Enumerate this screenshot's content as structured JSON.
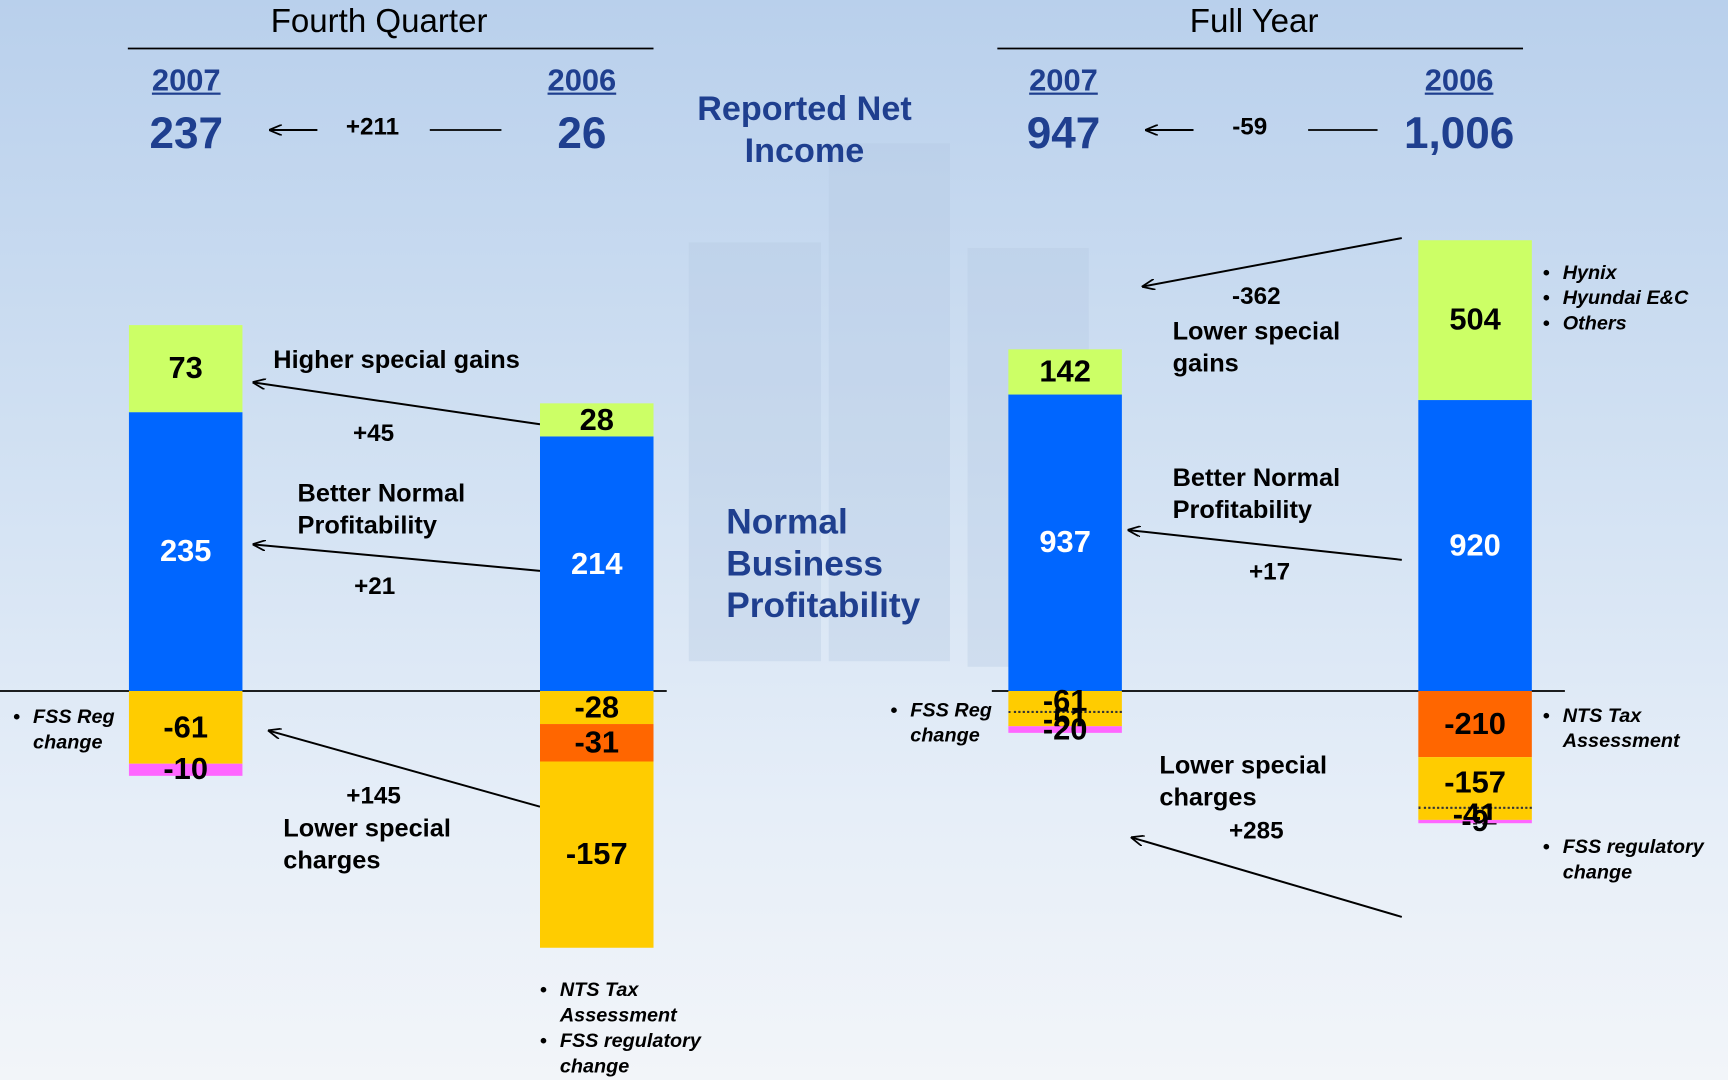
{
  "center_labels": [
    "Reported Net Income",
    "Normal Business Profitability"
  ],
  "chart_data": [
    {
      "type": "bar",
      "title": "Fourth Quarter",
      "change": "+211",
      "net_income": [
        {
          "year": "2007",
          "value": 237
        },
        {
          "year": "2006",
          "value": 26
        }
      ],
      "bars": [
        {
          "segments": [
            {
              "value": 235,
              "color": "#0066ff"
            },
            {
              "value": 73,
              "color": "#ccff66"
            },
            {
              "value": -61,
              "color": "#ffcc00"
            },
            {
              "value": -10,
              "color": "#ff66ff"
            }
          ]
        },
        {
          "segments": [
            {
              "value": 214,
              "color": "#0066ff"
            },
            {
              "value": 28,
              "color": "#ccff66"
            },
            {
              "value": -28,
              "color": "#ffcc00"
            },
            {
              "value": -31,
              "color": "#ff6600"
            },
            {
              "value": -157,
              "color": "#ffcc00"
            }
          ]
        }
      ],
      "annotations": [
        {
          "change": "+45",
          "label": "Higher special gains"
        },
        {
          "change": "+21",
          "label": "Better Normal Profitability"
        },
        {
          "change": "+145",
          "label": "Lower special charges"
        }
      ],
      "notes": [
        {
          "items": [
            "FSS Reg change"
          ]
        },
        {
          "items": [
            "NTS Tax Assessment",
            "FSS regulatory change"
          ]
        }
      ]
    },
    {
      "type": "bar",
      "title": "Full Year",
      "change": "-59",
      "net_income": [
        {
          "year": "2007",
          "value": 947
        },
        {
          "year": "2006",
          "value": 1006,
          "label": "1,006"
        }
      ],
      "bars": [
        {
          "segments": [
            {
              "value": 937,
              "color": "#0066ff"
            },
            {
              "value": 142,
              "color": "#ccff66"
            },
            {
              "value": -61,
              "color": "#ffcc00"
            },
            {
              "value": -51,
              "color": "#ffcc00"
            },
            {
              "value": -20,
              "color": "#ff66ff"
            }
          ]
        },
        {
          "segments": [
            {
              "value": 920,
              "color": "#0066ff"
            },
            {
              "value": 504,
              "color": "#ccff66"
            },
            {
              "value": -210,
              "color": "#ff6600"
            },
            {
              "value": -157,
              "color": "#ffcc00"
            },
            {
              "value": -41,
              "color": "#ffcc00"
            },
            {
              "value": -9,
              "color": "#ff66ff"
            }
          ]
        }
      ],
      "annotations": [
        {
          "change": "-362",
          "label": "Lower special gains"
        },
        {
          "change": "+17",
          "label": "Better Normal Profitability"
        },
        {
          "change": "+285",
          "label": "Lower special charges"
        }
      ],
      "notes": [
        {
          "items": [
            "Hynix",
            "Hyundai E&C",
            "Others"
          ]
        },
        {
          "items": [
            "FSS Reg change"
          ]
        },
        {
          "items": [
            "NTS Tax Assessment"
          ]
        },
        {
          "items": [
            "FSS regulatory change"
          ]
        }
      ]
    }
  ]
}
